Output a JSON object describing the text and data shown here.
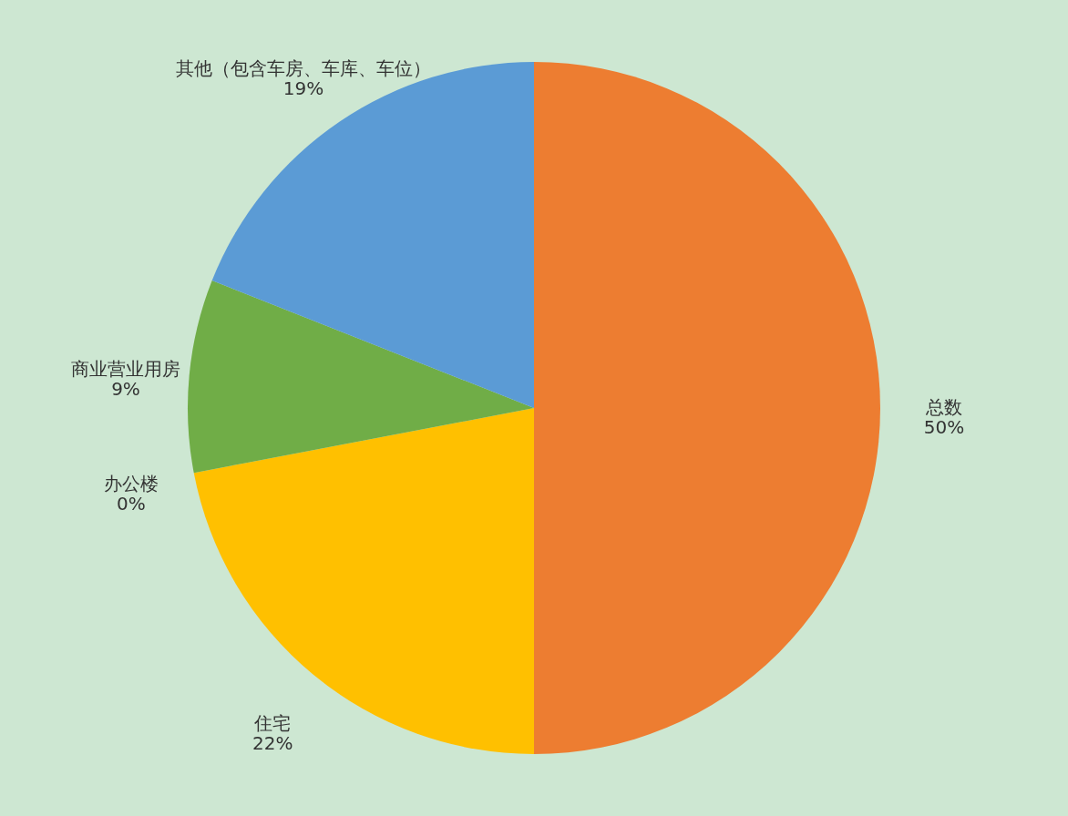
{
  "chart_data": {
    "type": "pie",
    "categories": [
      "总数",
      "住宅",
      "办公楼",
      "商业营业用房",
      "其他（包含车房、车库、车位）"
    ],
    "values": [
      50,
      22,
      0,
      9,
      19
    ],
    "value_labels": [
      "50%",
      "22%",
      "0%",
      "9%",
      "19%"
    ],
    "colors": [
      "#ed7d31",
      "#ffc000",
      "#a5a5a5",
      "#70ad47",
      "#5b9bd5"
    ]
  }
}
